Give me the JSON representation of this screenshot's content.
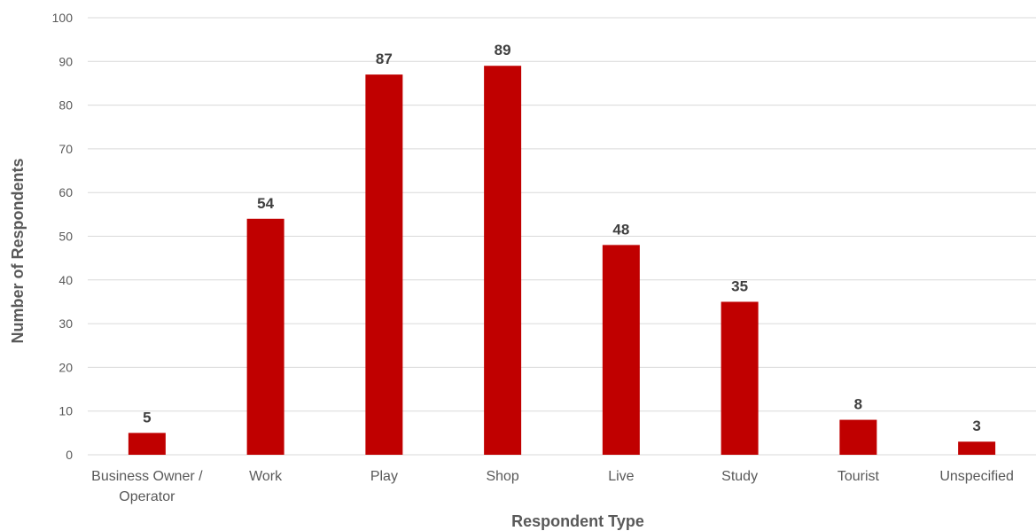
{
  "chart_data": {
    "type": "bar",
    "categories": [
      [
        "Business Owner /",
        "Operator"
      ],
      [
        "Work"
      ],
      [
        "Play"
      ],
      [
        "Shop"
      ],
      [
        "Live"
      ],
      [
        "Study"
      ],
      [
        "Tourist"
      ],
      [
        "Unspecified"
      ]
    ],
    "values": [
      5,
      54,
      87,
      89,
      48,
      35,
      8,
      3
    ],
    "xlabel": "Respondent Type",
    "ylabel": "Number of Respondents",
    "ylim": [
      0,
      100
    ],
    "yticks": [
      0,
      10,
      20,
      30,
      40,
      50,
      60,
      70,
      80,
      90,
      100
    ],
    "grid": true,
    "bar_color": "#c00000",
    "data_labels": true
  }
}
